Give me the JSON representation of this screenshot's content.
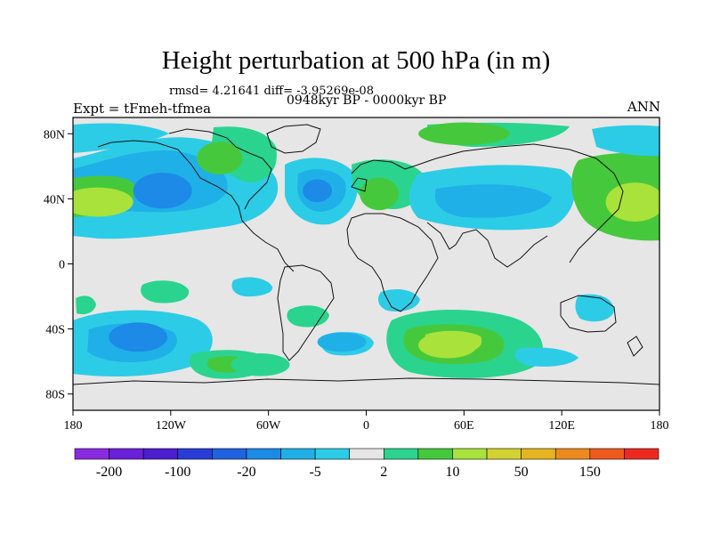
{
  "title": "Height perturbation at 500 hPa (in m)",
  "stats": "rmsd= 4.21641 diff= -3.95269e-08",
  "experiment": "Expt = tFmeh-tfmea",
  "period": "0948kyr BP - 0000kyr BP",
  "season": "ANN",
  "map": {
    "projection": "cylindrical equidistant",
    "lon_range": [
      -180,
      180
    ],
    "lat_range": [
      -90,
      90
    ],
    "lat_ticks": [
      {
        "value": 80,
        "label": "80N"
      },
      {
        "value": 40,
        "label": "40N"
      },
      {
        "value": 0,
        "label": "0"
      },
      {
        "value": -40,
        "label": "40S"
      },
      {
        "value": -80,
        "label": "80S"
      }
    ],
    "lon_ticks": [
      {
        "value": -180,
        "label": "180"
      },
      {
        "value": -120,
        "label": "120W"
      },
      {
        "value": -60,
        "label": "60W"
      },
      {
        "value": 0,
        "label": "0"
      },
      {
        "value": 60,
        "label": "60E"
      },
      {
        "value": 120,
        "label": "120E"
      },
      {
        "value": 180,
        "label": "180"
      }
    ],
    "background_color": "#e6e6e6"
  },
  "colorbar": {
    "colors": [
      "#8a2be2",
      "#6a1fd8",
      "#4b1ed0",
      "#2a3cd6",
      "#1f63e0",
      "#1c8ae6",
      "#1fb0e8",
      "#2ccce6",
      "#e6e6e6",
      "#2ad48e",
      "#46c83c",
      "#a8e23a",
      "#d2d232",
      "#e6b420",
      "#ec8a1e",
      "#ee5a1e",
      "#ee2a20"
    ],
    "labels": [
      {
        "index": 1,
        "text": "-200"
      },
      {
        "index": 3,
        "text": "-100"
      },
      {
        "index": 5,
        "text": "-20"
      },
      {
        "index": 7,
        "text": "-5"
      },
      {
        "index": 9,
        "text": "2"
      },
      {
        "index": 11,
        "text": "10"
      },
      {
        "index": 13,
        "text": "50"
      },
      {
        "index": 15,
        "text": "150"
      }
    ]
  },
  "anomaly_regions": [
    {
      "name": "north-pacific-positive",
      "color": "#a8e23a",
      "lon": -165,
      "lat": 38,
      "rx": 22,
      "ry": 9
    },
    {
      "name": "north-pacific-negative-core",
      "color": "#1c8ae6",
      "lon": -125,
      "lat": 45,
      "rx": 18,
      "ry": 11
    },
    {
      "name": "north-atlantic-negative-core",
      "color": "#1c8ae6",
      "lon": -30,
      "lat": 45,
      "rx": 9,
      "ry": 7
    },
    {
      "name": "western-europe-positive",
      "color": "#46c83c",
      "lon": 8,
      "lat": 43,
      "rx": 12,
      "ry": 10
    },
    {
      "name": "arctic-canada-positive",
      "color": "#46c83c",
      "lon": -90,
      "lat": 65,
      "rx": 14,
      "ry": 10
    },
    {
      "name": "siberia-positive",
      "color": "#46c83c",
      "lon": 60,
      "lat": 80,
      "rx": 28,
      "ry": 7
    },
    {
      "name": "northwest-pacific-positive",
      "color": "#a8e23a",
      "lon": 165,
      "lat": 38,
      "rx": 18,
      "ry": 12
    },
    {
      "name": "south-pacific-negative-core",
      "color": "#1c8ae6",
      "lon": -140,
      "lat": -45,
      "rx": 18,
      "ry": 9
    },
    {
      "name": "south-atlantic-negative",
      "color": "#1fb0e8",
      "lon": -15,
      "lat": -48,
      "rx": 15,
      "ry": 6
    },
    {
      "name": "south-indian-positive-core",
      "color": "#a8e23a",
      "lon": 50,
      "lat": -50,
      "rx": 18,
      "ry": 8
    },
    {
      "name": "south-america-positive",
      "color": "#2ad48e",
      "lon": -65,
      "lat": -62,
      "rx": 18,
      "ry": 7
    }
  ]
}
